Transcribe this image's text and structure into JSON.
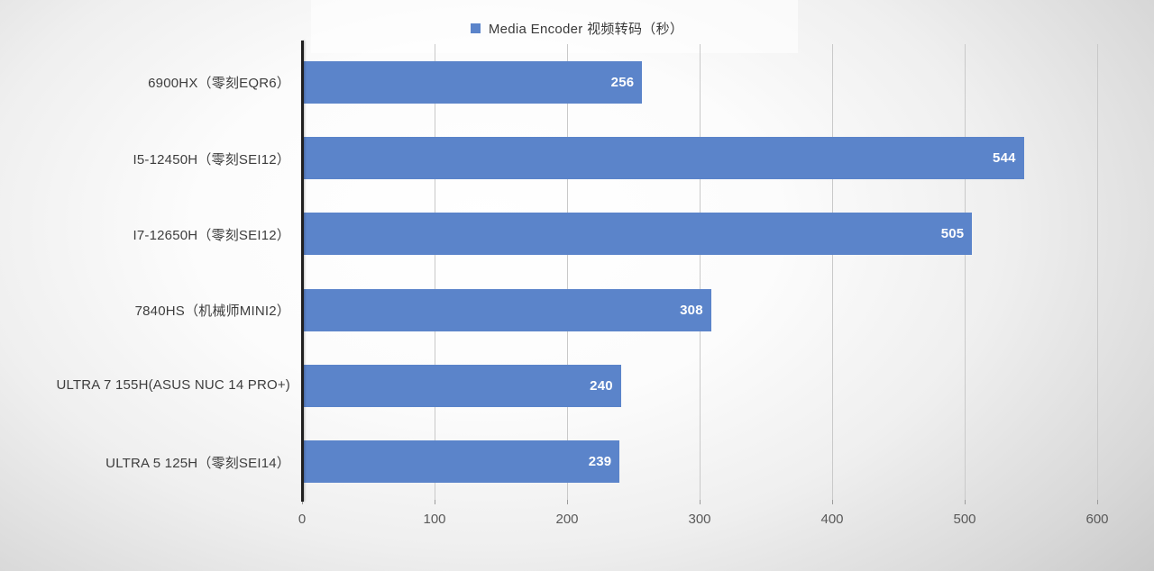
{
  "colors": {
    "bar": "#5B84CA",
    "gridline": "#c9c9c9",
    "axis_line": "#202020",
    "value_label": "#ffffff",
    "category_label": "#3d3d3d",
    "tick_label": "#595959",
    "legend_text": "#3a3a3a",
    "background_edge": "#b6b6b6",
    "background_center": "#ffffff"
  },
  "chart_data": {
    "type": "bar",
    "orientation": "horizontal",
    "title": "",
    "categories": [
      "6900HX（零刻EQR6）",
      "I5-12450H（零刻SEI12）",
      "I7-12650H（零刻SEI12）",
      "7840HS（机械师MINI2）",
      "ULTRA 7 155H(ASUS NUC 14 PRO+)",
      "ULTRA 5 125H（零刻SEI14）"
    ],
    "series": [
      {
        "name": "Media Encoder 视频转码（秒）",
        "values": [
          256,
          544,
          505,
          308,
          240,
          239
        ]
      }
    ],
    "xlim": [
      0,
      600
    ],
    "x_ticks": [
      0,
      100,
      200,
      300,
      400,
      500,
      600
    ],
    "grid": "vertical-only",
    "legend_position": "top-center",
    "value_labels": "inside-end"
  }
}
